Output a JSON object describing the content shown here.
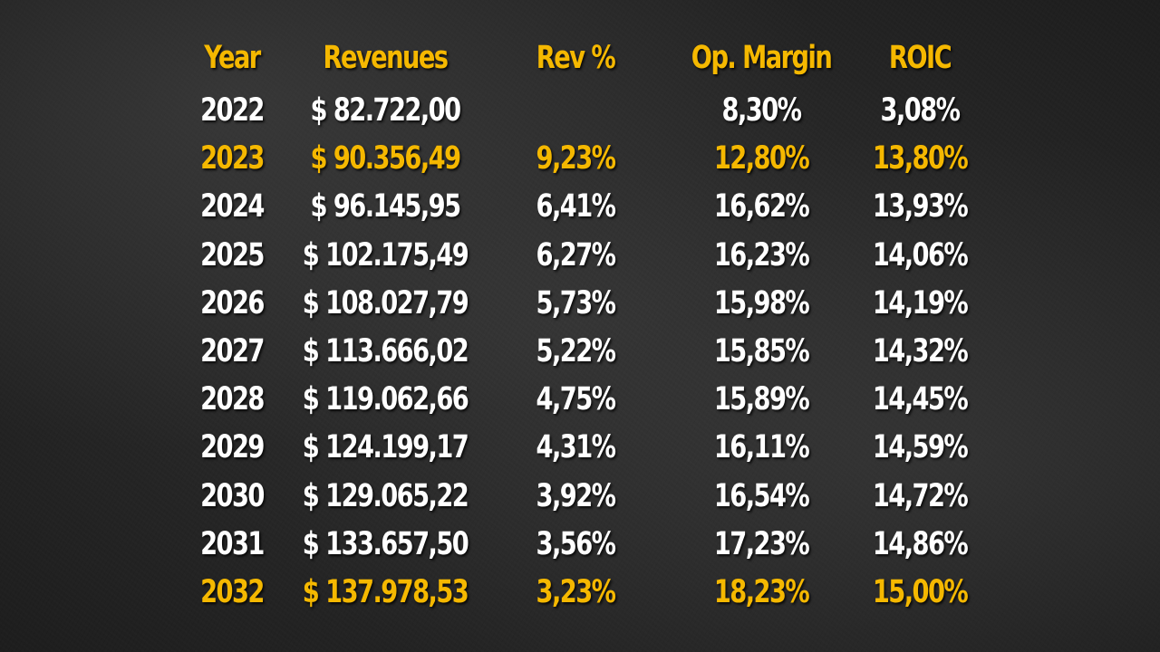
{
  "colors": {
    "header": "#f5b800",
    "highlight": "#f5b800",
    "text": "#ffffff",
    "background": "#2b2b2b"
  },
  "chart_data": {
    "type": "table",
    "columns": [
      "Year",
      "Revenues",
      "Rev %",
      "Op. Margin",
      "ROIC"
    ],
    "rows": [
      {
        "year": "2022",
        "revenues": "$ 82.722,00",
        "rev_pct": "",
        "op_margin": "8,30%",
        "roic": "3,08%",
        "highlight": false
      },
      {
        "year": "2023",
        "revenues": "$ 90.356,49",
        "rev_pct": "9,23%",
        "op_margin": "12,80%",
        "roic": "13,80%",
        "highlight": true
      },
      {
        "year": "2024",
        "revenues": "$ 96.145,95",
        "rev_pct": "6,41%",
        "op_margin": "16,62%",
        "roic": "13,93%",
        "highlight": false
      },
      {
        "year": "2025",
        "revenues": "$ 102.175,49",
        "rev_pct": "6,27%",
        "op_margin": "16,23%",
        "roic": "14,06%",
        "highlight": false
      },
      {
        "year": "2026",
        "revenues": "$ 108.027,79",
        "rev_pct": "5,73%",
        "op_margin": "15,98%",
        "roic": "14,19%",
        "highlight": false
      },
      {
        "year": "2027",
        "revenues": "$ 113.666,02",
        "rev_pct": "5,22%",
        "op_margin": "15,85%",
        "roic": "14,32%",
        "highlight": false
      },
      {
        "year": "2028",
        "revenues": "$ 119.062,66",
        "rev_pct": "4,75%",
        "op_margin": "15,89%",
        "roic": "14,45%",
        "highlight": false
      },
      {
        "year": "2029",
        "revenues": "$ 124.199,17",
        "rev_pct": "4,31%",
        "op_margin": "16,11%",
        "roic": "14,59%",
        "highlight": false
      },
      {
        "year": "2030",
        "revenues": "$ 129.065,22",
        "rev_pct": "3,92%",
        "op_margin": "16,54%",
        "roic": "14,72%",
        "highlight": false
      },
      {
        "year": "2031",
        "revenues": "$ 133.657,50",
        "rev_pct": "3,56%",
        "op_margin": "17,23%",
        "roic": "14,86%",
        "highlight": false
      },
      {
        "year": "2032",
        "revenues": "$ 137.978,53",
        "rev_pct": "3,23%",
        "op_margin": "18,23%",
        "roic": "15,00%",
        "highlight": true
      }
    ],
    "values": {
      "year": [
        2022,
        2023,
        2024,
        2025,
        2026,
        2027,
        2028,
        2029,
        2030,
        2031,
        2032
      ],
      "revenues": [
        82722.0,
        90356.49,
        96145.95,
        102175.49,
        108027.79,
        113666.02,
        119062.66,
        124199.17,
        129065.22,
        133657.5,
        137978.53
      ],
      "rev_pct": [
        null,
        9.23,
        6.41,
        6.27,
        5.73,
        5.22,
        4.75,
        4.31,
        3.92,
        3.56,
        3.23
      ],
      "op_margin": [
        8.3,
        12.8,
        16.62,
        16.23,
        15.98,
        15.85,
        15.89,
        16.11,
        16.54,
        17.23,
        18.23
      ],
      "roic": [
        3.08,
        13.8,
        13.93,
        14.06,
        14.19,
        14.32,
        14.45,
        14.59,
        14.72,
        14.86,
        15.0
      ]
    }
  }
}
